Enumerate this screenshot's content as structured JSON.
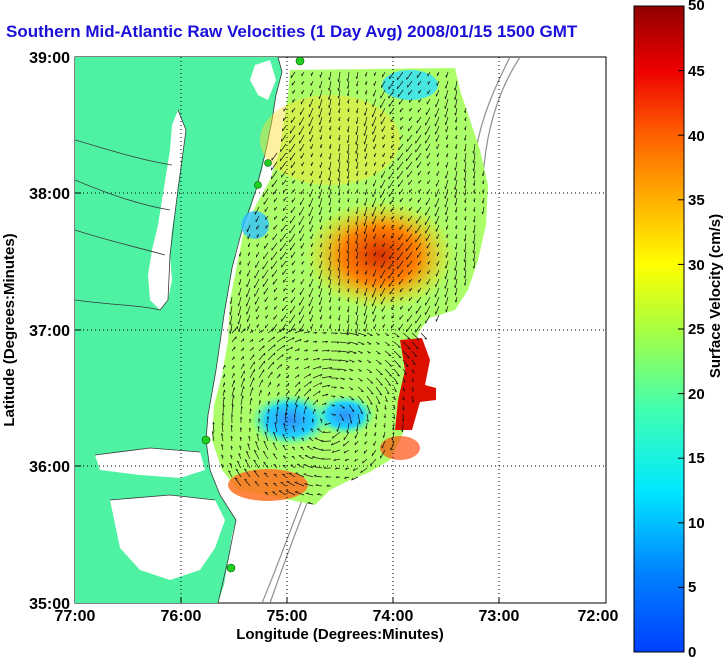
{
  "title": "Southern Mid-Atlantic Raw Velocities (1 Day Avg) 2008/01/15 1500 GMT",
  "map": {
    "xlabel": "Longitude (Degrees:Minutes)",
    "ylabel": "Latitude (Degrees:Minutes)",
    "x_ticks": [
      "77:00",
      "76:00",
      "75:00",
      "74:00",
      "73:00",
      "72:00"
    ],
    "y_ticks": [
      "39:00",
      "38:00",
      "37:00",
      "36:00",
      "35:00"
    ],
    "lon_range": [
      -77,
      -72
    ],
    "lat_range": [
      35,
      39
    ],
    "land_color": "#4ef2a2",
    "water_color": "#ffffff",
    "grid": "dotted",
    "stations": [
      "green-marker",
      "green-marker",
      "green-marker",
      "green-marker",
      "green-marker"
    ]
  },
  "colorbar": {
    "label": "Surface Velocity (cm/s)",
    "units": "cm/s",
    "min": 0,
    "max": 50,
    "ticks": [
      "0",
      "5",
      "10",
      "15",
      "20",
      "25",
      "30",
      "35",
      "40",
      "45",
      "50"
    ],
    "colormap": "jet"
  }
}
